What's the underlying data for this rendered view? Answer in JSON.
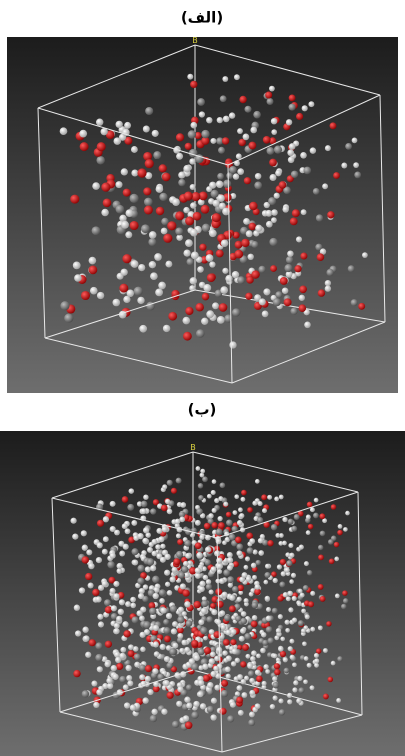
{
  "panels": [
    {
      "label": "(الف)",
      "axis": "B"
    },
    {
      "label": "(ب)",
      "axis": "B"
    }
  ]
}
